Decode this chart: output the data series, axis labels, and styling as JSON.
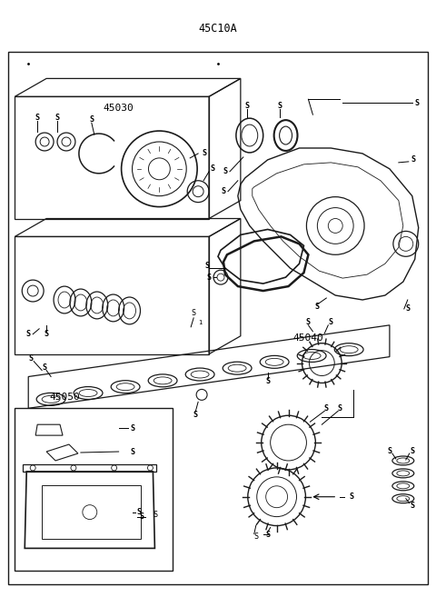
{
  "title": "45C10A",
  "background_color": "#ffffff",
  "border_color": "#000000",
  "label_45030": "45030",
  "label_45040": "45040",
  "label_45050": "45050",
  "figsize": [
    4.8,
    6.57
  ],
  "dpi": 100
}
